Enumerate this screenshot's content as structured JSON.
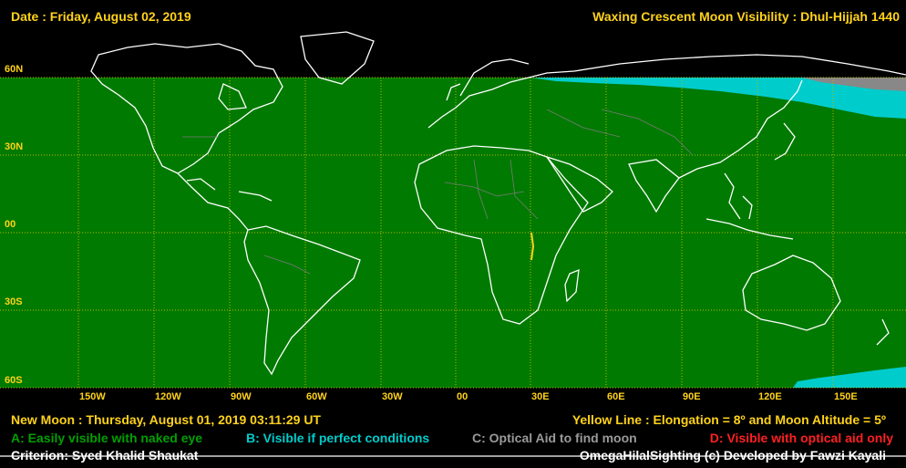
{
  "header": {
    "date": "Date : Friday, August 02, 2019",
    "title": "Waxing Crescent Moon Visibility : Dhul-Hijjah 1440"
  },
  "lat_labels": [
    "60N",
    "30N",
    "00",
    "30S",
    "60S"
  ],
  "lon_labels": [
    "150W",
    "120W",
    "90W",
    "60W",
    "30W",
    "00",
    "30E",
    "60E",
    "90E",
    "120E",
    "150E"
  ],
  "footer": {
    "new_moon": "New Moon : Thursday, August 01, 2019  03:11:29  UT",
    "yellow_line": "Yellow Line : Elongation = 8º  and Moon Altitude = 5º",
    "zone_a": "A: Easily visible with naked eye",
    "zone_b": "B: Visible if perfect conditions",
    "zone_c": "C: Optical Aid to find moon",
    "zone_d": "D: Visible with optical aid only",
    "criterion": "Criterion: Syed Khalid Shaukat",
    "credit": "OmegaHilalSighting  (c)  Developed by Fawzi Kayali"
  },
  "colors": {
    "zone_a": "#007a00",
    "zone_b": "#00cccc",
    "zone_c": "#888888",
    "zone_d": "#ff2020",
    "label": "#ffd21a",
    "grid": "#b8b800",
    "coast": "#ffffff"
  }
}
